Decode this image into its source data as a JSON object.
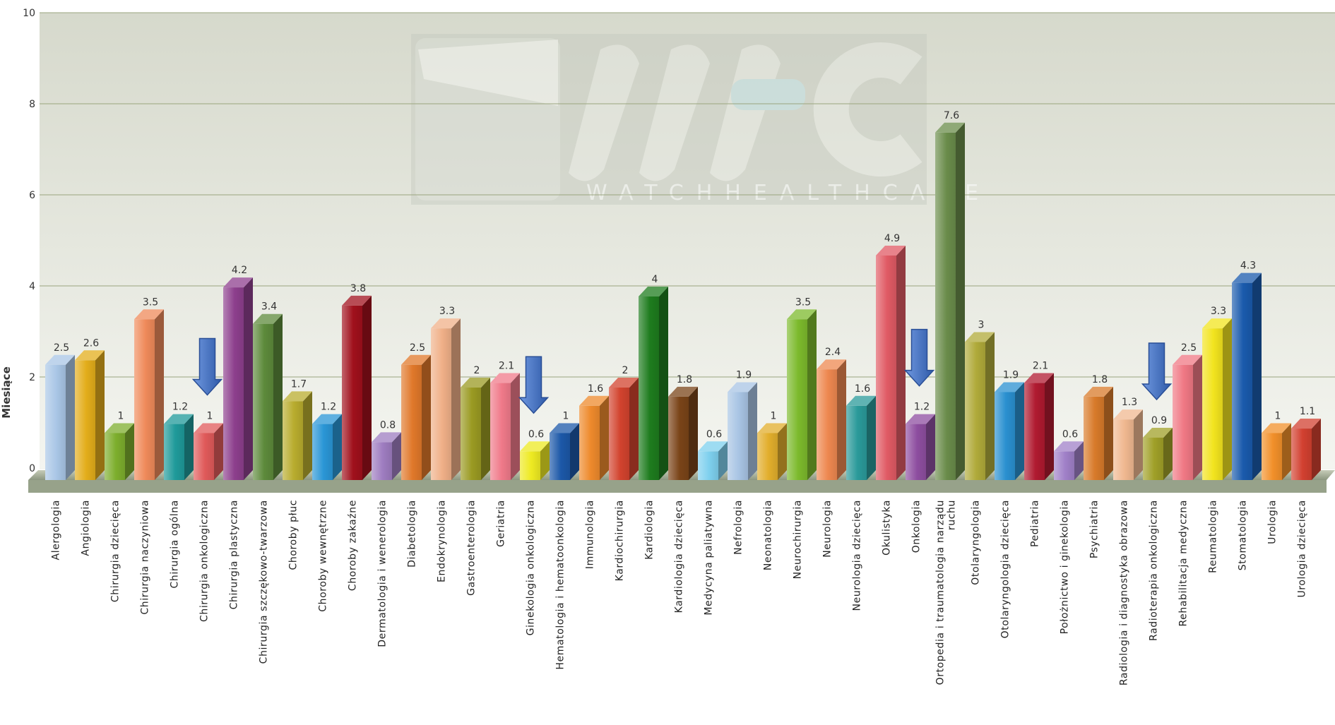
{
  "chart_data": {
    "type": "bar",
    "ylabel": "Miesiące",
    "xlabel": "",
    "ylim": [
      0,
      10
    ],
    "yticks": [
      0,
      2,
      4,
      6,
      8,
      10
    ],
    "grid": true,
    "legend": "none",
    "style": "3d-column",
    "categories": [
      "Alergologia",
      "Angiologia",
      "Chirurgia dziecięca",
      "Chirurgia naczyniowa",
      "Chirurgia ogólna",
      "Chirurgia onkologiczna",
      "Chirurgia plastyczna",
      "Chirurgia szczękowo-twarzowa",
      "Choroby płuc",
      "Choroby wewnętrzne",
      "Choroby zakaźne",
      "Dermatologia i wenerologia",
      "Diabetologia",
      "Endokrynologia",
      "Gastroenterologia",
      "Geriatria",
      "Ginekologia onkologiczna",
      "Hematologia i hematoonkologia",
      "Immunologia",
      "Kardiochirurgia",
      "Kardiologia",
      "Kardiologia dziecięca",
      "Medycyna paliatywna",
      "Nefrologia",
      "Neonatologia",
      "Neurochirurgia",
      "Neurologia",
      "Neurologia dziecięca",
      "Okulistyka",
      "Onkologia",
      "Ortopedia i traumatologia narządu ruchu",
      "Otolaryngologia",
      "Otolaryngologia dziecięca",
      "Pediatria",
      "Położnictwo i ginekologia",
      "Psychiatria",
      "Radiologia i diagnostyka obrazowa",
      "Radioterapia onkologiczna",
      "Rehabilitacja medyczna",
      "Reumatologia",
      "Stomatologia",
      "Urologia",
      "Urologia dziecięca"
    ],
    "values": [
      2.5,
      2.6,
      1,
      3.5,
      1.2,
      1,
      4.2,
      3.4,
      1.7,
      1.2,
      3.8,
      0.8,
      2.5,
      3.3,
      2,
      2.1,
      0.6,
      1,
      1.6,
      2,
      4,
      1.8,
      0.6,
      1.9,
      1,
      3.5,
      2.4,
      1.6,
      4.9,
      1.2,
      7.6,
      3,
      1.9,
      2.1,
      0.6,
      1.8,
      1.3,
      0.9,
      2.5,
      3.3,
      4.3,
      1,
      1.1
    ],
    "value_labels": [
      "2.5",
      "2.6",
      "1",
      "3.5",
      "1.2",
      "1",
      "4.2",
      "3.4",
      "1.7",
      "1.2",
      "3.8",
      "0.8",
      "2.5",
      "3.3",
      "2",
      "2.1",
      "0.6",
      "1",
      "1.6",
      "2",
      "4",
      "1.8",
      "0.6",
      "1.9",
      "1",
      "3.5",
      "2.4",
      "1.6",
      "4.9",
      "1.2",
      "7.6",
      "3",
      "1.9",
      "2.1",
      "0.6",
      "1.8",
      "1.3",
      "0.9",
      "2.5",
      "3.3",
      "4.3",
      "1",
      "1.1"
    ],
    "colors": [
      "#a9c6e6",
      "#e3ad1b",
      "#7dae2d",
      "#ef8a5a",
      "#1f9a9a",
      "#e05a5a",
      "#8d3f8d",
      "#5d8a3b",
      "#b8ac2e",
      "#2a96d6",
      "#a0101c",
      "#9e7cc0",
      "#e0782a",
      "#f0b088",
      "#9a9a22",
      "#f07a8a",
      "#eeea22",
      "#1c58a8",
      "#ee8a2c",
      "#d2432e",
      "#1e7c1e",
      "#7a4418",
      "#7ed0ee",
      "#a8c4e4",
      "#e2ae2c",
      "#7cba2c",
      "#ee8850",
      "#2a9a9a",
      "#e05a64",
      "#8e4ea0",
      "#6a8c4a",
      "#b0aa3a",
      "#2a90d0",
      "#b01a30",
      "#a080c8",
      "#d87a2a",
      "#f0b890",
      "#a0a028",
      "#f07884",
      "#f2e41e",
      "#1a5aac",
      "#f2902a",
      "#d24030"
    ],
    "highlighted": [
      "Chirurgia onkologiczna",
      "Ginekologia onkologiczna",
      "Onkologia",
      "Radioterapia onkologiczna"
    ]
  },
  "watermark": {
    "text": "WATCHHEALTHCARE",
    "color": "#ffffff"
  },
  "arrow_color": "#4a78c8"
}
